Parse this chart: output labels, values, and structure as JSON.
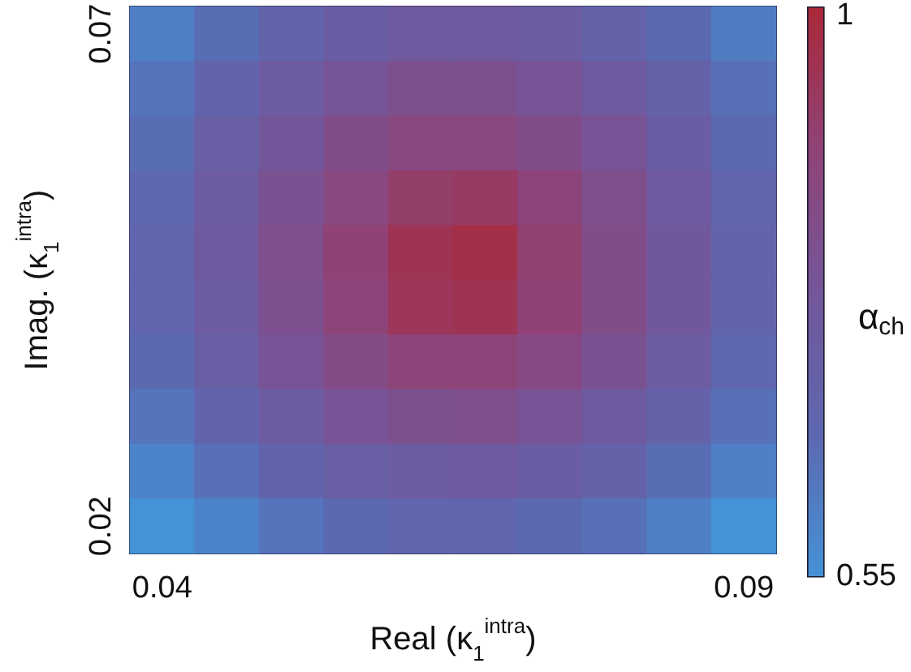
{
  "chart_data": {
    "type": "heatmap",
    "xlabel": "Real (κ$_{1}$$^{intra}$)",
    "ylabel": "Imag. (κ$_{1}$$^{intra}$)",
    "clabel": "α$_{ch}$",
    "categories": [
      "0.04",
      null,
      null,
      null,
      null,
      null,
      null,
      null,
      null,
      "0.09"
    ],
    "y_categories": [
      "0.07",
      null,
      null,
      null,
      null,
      null,
      null,
      null,
      null,
      "0.02"
    ],
    "clim": [
      0.55,
      1
    ],
    "cticks": [
      0.55,
      1
    ],
    "cells": [
      [
        0.6,
        0.65,
        0.69,
        0.73,
        0.75,
        0.75,
        0.74,
        0.7,
        0.66,
        0.61
      ],
      [
        0.63,
        0.69,
        0.74,
        0.78,
        0.81,
        0.81,
        0.79,
        0.75,
        0.7,
        0.64
      ],
      [
        0.65,
        0.72,
        0.77,
        0.83,
        0.86,
        0.86,
        0.83,
        0.79,
        0.73,
        0.66
      ],
      [
        0.67,
        0.74,
        0.8,
        0.86,
        0.91,
        0.92,
        0.88,
        0.82,
        0.75,
        0.68
      ],
      [
        0.68,
        0.75,
        0.82,
        0.89,
        0.95,
        0.97,
        0.9,
        0.83,
        0.76,
        0.69
      ],
      [
        0.68,
        0.74,
        0.81,
        0.88,
        0.94,
        0.95,
        0.89,
        0.83,
        0.76,
        0.69
      ],
      [
        0.66,
        0.72,
        0.79,
        0.84,
        0.88,
        0.88,
        0.85,
        0.8,
        0.74,
        0.67
      ],
      [
        0.63,
        0.69,
        0.74,
        0.79,
        0.81,
        0.82,
        0.79,
        0.75,
        0.7,
        0.64
      ],
      [
        0.59,
        0.64,
        0.69,
        0.72,
        0.74,
        0.75,
        0.73,
        0.7,
        0.65,
        0.6
      ],
      [
        0.55,
        0.59,
        0.63,
        0.66,
        0.68,
        0.68,
        0.66,
        0.64,
        0.6,
        0.55
      ]
    ]
  }
}
